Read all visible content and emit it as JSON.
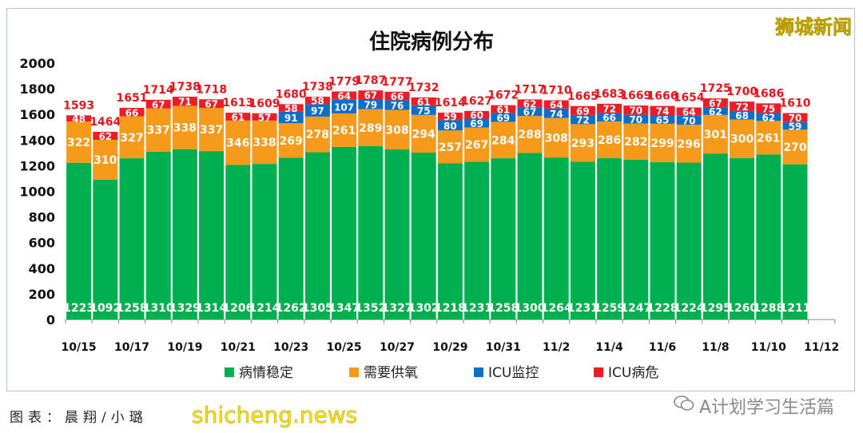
{
  "chart_data": {
    "type": "bar",
    "stacked": true,
    "title": "住院病例分布",
    "categories": [
      "10/15",
      "10/16",
      "10/17",
      "10/18",
      "10/19",
      "10/20",
      "10/21",
      "10/22",
      "10/23",
      "10/24",
      "10/25",
      "10/26",
      "10/27",
      "10/28",
      "10/29",
      "10/30",
      "10/31",
      "11/1",
      "11/2",
      "11/3",
      "11/4",
      "11/5",
      "11/6",
      "11/7",
      "11/8",
      "11/9",
      "11/10",
      "11/11",
      "11/12"
    ],
    "tick_labels": [
      "10/15",
      "10/17",
      "10/19",
      "10/21",
      "10/23",
      "10/25",
      "10/27",
      "10/29",
      "10/31",
      "11/2",
      "11/4",
      "11/6",
      "11/8",
      "11/10",
      "11/12"
    ],
    "ylim": [
      0,
      2000
    ],
    "yticks": [
      0,
      200,
      400,
      600,
      800,
      1000,
      1200,
      1400,
      1600,
      1800,
      2000
    ],
    "grid": false,
    "legend_position": "bottom",
    "series": [
      {
        "name": "病情稳定",
        "color": "#00b050",
        "values": [
          1223,
          1092,
          1258,
          1310,
          1329,
          1314,
          1206,
          1214,
          1262,
          1305,
          1347,
          1352,
          1327,
          1302,
          1218,
          1231,
          1258,
          1300,
          1264,
          1231,
          1259,
          1247,
          1228,
          1224,
          1295,
          1260,
          1288,
          1211,
          null
        ]
      },
      {
        "name": "需要供氧",
        "color": "#f59a1b",
        "values": [
          322,
          310,
          327,
          337,
          338,
          337,
          346,
          338,
          269,
          278,
          261,
          289,
          308,
          294,
          257,
          267,
          284,
          288,
          308,
          293,
          286,
          282,
          299,
          296,
          301,
          300,
          261,
          270,
          null
        ]
      },
      {
        "name": "ICU监控",
        "color": "#0f6fc6",
        "values": [
          0,
          0,
          0,
          0,
          0,
          0,
          0,
          0,
          91,
          97,
          107,
          79,
          76,
          75,
          80,
          69,
          69,
          67,
          74,
          72,
          66,
          70,
          65,
          70,
          62,
          68,
          62,
          59,
          null
        ]
      },
      {
        "name": "ICU病危",
        "color": "#ee1c25",
        "values": [
          48,
          62,
          66,
          67,
          71,
          67,
          61,
          57,
          58,
          58,
          64,
          67,
          66,
          61,
          59,
          60,
          61,
          62,
          64,
          69,
          72,
          70,
          74,
          64,
          67,
          72,
          75,
          70,
          null
        ]
      }
    ],
    "totals": [
      1593,
      1464,
      1651,
      1714,
      1738,
      1718,
      1613,
      1609,
      1680,
      1738,
      1779,
      1787,
      1777,
      1732,
      1614,
      1627,
      1672,
      1717,
      1710,
      1665,
      1683,
      1669,
      1666,
      1654,
      1725,
      1700,
      1686,
      1610,
      null
    ],
    "total_label_color": "#e8141c"
  },
  "watermarks": {
    "top_right": "狮城新闻",
    "bottom_right": "A计划学习生活篇",
    "bottom_left": "shicheng.news"
  },
  "caption": "图表：晨翔/小璐"
}
